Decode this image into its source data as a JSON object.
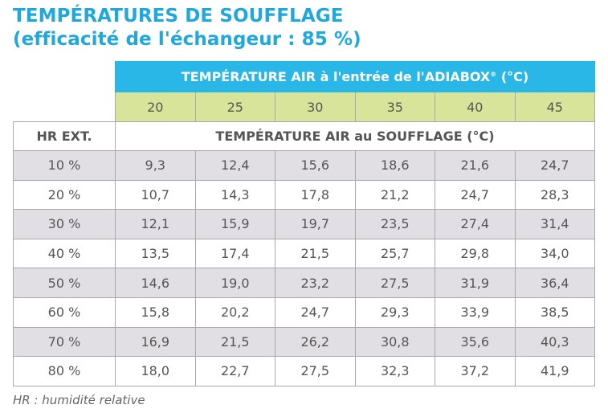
{
  "title": {
    "line1": "TEMPÉRATURES DE SOUFFLAGE",
    "line2": "(efficacité de l'échangeur : 85 %)"
  },
  "colors": {
    "title": "#1fa8dc",
    "header_blue": "#29b7e8",
    "header_green": "#d8e49a",
    "row_shaded": "#e2dfe4",
    "border": "#a9a9a9",
    "text": "#555555"
  },
  "table": {
    "inlet_header": "TEMPÉRATURE AIR à l'entrée de l'ADIABOX",
    "inlet_header_mark": "®",
    "inlet_header_unit": " (°C)",
    "inlet_temps": [
      "20",
      "25",
      "30",
      "35",
      "40",
      "45"
    ],
    "hr_header": "HR EXT.",
    "outlet_header": "TEMPÉRATURE AIR au SOUFFLAGE (°C)",
    "rows": [
      {
        "hr": "10 %",
        "values": [
          "9,3",
          "12,4",
          "15,6",
          "18,6",
          "21,6",
          "24,7"
        ]
      },
      {
        "hr": "20 %",
        "values": [
          "10,7",
          "14,3",
          "17,8",
          "21,2",
          "24,7",
          "28,3"
        ]
      },
      {
        "hr": "30 %",
        "values": [
          "12,1",
          "15,9",
          "19,7",
          "23,5",
          "27,4",
          "31,4"
        ]
      },
      {
        "hr": "40 %",
        "values": [
          "13,5",
          "17,4",
          "21,5",
          "25,7",
          "29,8",
          "34,0"
        ]
      },
      {
        "hr": "50 %",
        "values": [
          "14,6",
          "19,0",
          "23,2",
          "27,5",
          "31,9",
          "36,4"
        ]
      },
      {
        "hr": "60 %",
        "values": [
          "15,8",
          "20,2",
          "24,7",
          "29,3",
          "33,9",
          "38,5"
        ]
      },
      {
        "hr": "70 %",
        "values": [
          "16,9",
          "21,5",
          "26,2",
          "30,8",
          "35,6",
          "40,3"
        ]
      },
      {
        "hr": "80 %",
        "values": [
          "18,0",
          "22,7",
          "27,5",
          "32,3",
          "37,2",
          "41,9"
        ]
      }
    ]
  },
  "footnote": "HR : humidité relative"
}
